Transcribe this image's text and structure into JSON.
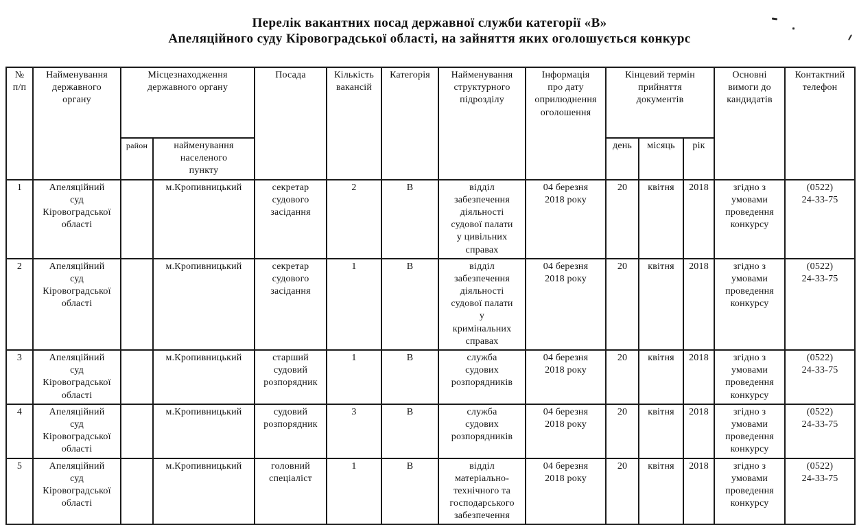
{
  "page": {
    "paper_color": "#ffffff",
    "ink_color": "#1b1b1b"
  },
  "title": {
    "line1": "Перелік вакантних посад державної служби категорії «В»",
    "line2": "Апеляційного суду Кіровоградської області, на зайняття яких оголошується конкурс"
  },
  "table": {
    "headers": {
      "num": "№\nп/п",
      "organ": "Найменування\nдержавного\nоргану",
      "location": "Місцезнаходження\nдержавного органу",
      "district": "район",
      "settlement": "найменування\nнаселеного\nпункту",
      "position": "Посада",
      "vacancies": "Кількість\nвакансій",
      "category": "Категорія",
      "unit": "Найменування\nструктурного\nпідрозділу",
      "announce": "Інформація\nпро дату\nоприлюднення\nоголошення",
      "deadline": "Кінцевий термін\nприйняття\nдокументів",
      "day": "день",
      "month": "місяць",
      "year": "рік",
      "requirements": "Основні\nвимоги до\nкандидатів",
      "phone": "Контактний\nтелефон"
    },
    "rows": [
      {
        "num": "1",
        "organ": "Апеляційний\nсуд\nКіровоградської\nобласті",
        "district": "",
        "settlement": "м.Кропивницький",
        "position": "секретар\nсудового\nзасідання",
        "vacancies": "2",
        "category": "В",
        "unit": "відділ\nзабезпечення\nдіяльності\nсудової палати\nу цивільних\nсправах",
        "announce": "04 березня\n2018 року",
        "day": "20",
        "month": "квітня",
        "year": "2018",
        "requirements": "згідно з\nумовами\nпроведення\nконкурсу",
        "phone": "(0522)\n24-33-75"
      },
      {
        "num": "2",
        "organ": "Апеляційний\nсуд\nКіровоградської\nобласті",
        "district": "",
        "settlement": "м.Кропивницький",
        "position": "секретар\nсудового\nзасідання",
        "vacancies": "1",
        "category": "В",
        "unit": "відділ\nзабезпечення\nдіяльності\nсудової палати\nу\nкримінальних\nсправах",
        "announce": "04 березня\n2018 року",
        "day": "20",
        "month": "квітня",
        "year": "2018",
        "requirements": "згідно з\nумовами\nпроведення\nконкурсу",
        "phone": "(0522)\n24-33-75"
      },
      {
        "num": "3",
        "organ": "Апеляційний\nсуд\nКіровоградської\nобласті",
        "district": "",
        "settlement": "м.Кропивницький",
        "position": "старший\nсудовий\nрозпорядник",
        "vacancies": "1",
        "category": "В",
        "unit": "служба\nсудових\nрозпорядників",
        "announce": "04 березня\n2018 року",
        "day": "20",
        "month": "квітня",
        "year": "2018",
        "requirements": "згідно з\nумовами\nпроведення\nконкурсу",
        "phone": "(0522)\n24-33-75"
      },
      {
        "num": "4",
        "organ": "Апеляційний\nсуд\nКіровоградської\nобласті",
        "district": "",
        "settlement": "м.Кропивницький",
        "position": "судовий\nрозпорядник",
        "vacancies": "3",
        "category": "В",
        "unit": "служба\nсудових\nрозпорядників",
        "announce": "04 березня\n2018 року",
        "day": "20",
        "month": "квітня",
        "year": "2018",
        "requirements": "згідно з\nумовами\nпроведення\nконкурсу",
        "phone": "(0522)\n24-33-75"
      },
      {
        "num": "5",
        "organ": "Апеляційний\nсуд\nКіровоградської\nобласті",
        "district": "",
        "settlement": "м.Кропивницький",
        "position": "головний\nспеціаліст",
        "vacancies": "1",
        "category": "В",
        "unit": "відділ\nматеріально-\nтехнічного та\nгосподарського\nзабезпечення",
        "announce": "04 березня\n2018 року",
        "day": "20",
        "month": "квітня",
        "year": "2018",
        "requirements": "згідно з\nумовами\nпроведення\nконкурсу",
        "phone": "(0522)\n24-33-75"
      }
    ]
  }
}
